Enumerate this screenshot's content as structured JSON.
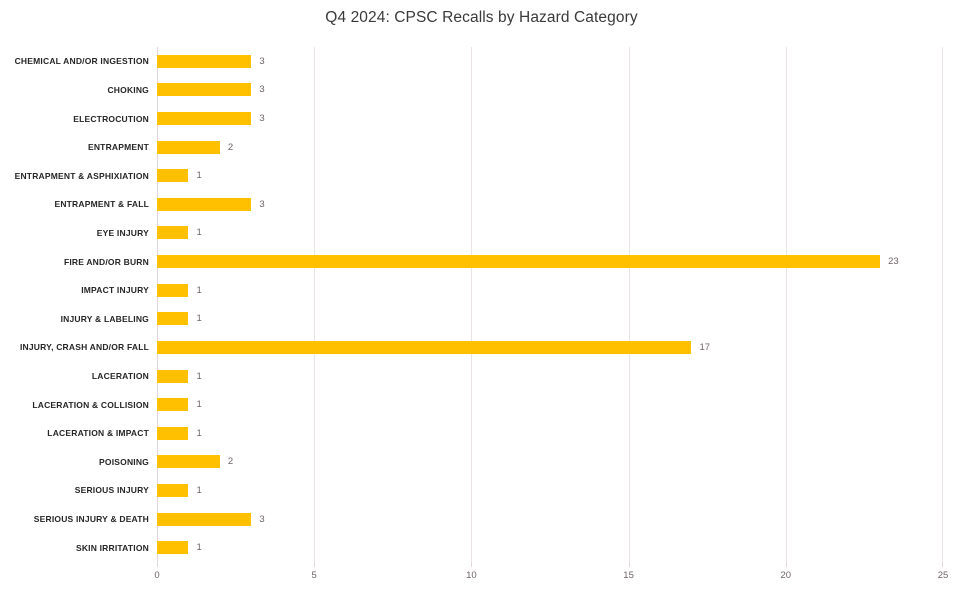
{
  "chart_data": {
    "type": "bar",
    "orientation": "horizontal",
    "title": "Q4 2024: CPSC Recalls by Hazard Category",
    "categories": [
      "CHEMICAL AND/OR INGESTION",
      "CHOKING",
      "ELECTROCUTION",
      "ENTRAPMENT",
      "ENTRAPMENT & ASPHIXIATION",
      "ENTRAPMENT & FALL",
      "EYE INJURY",
      "FIRE AND/OR BURN",
      "IMPACT INJURY",
      "INJURY & LABELING",
      "INJURY, CRASH AND/OR FALL",
      "LACERATION",
      "LACERATION & COLLISION",
      "LACERATION & IMPACT",
      "POISONING",
      "SERIOUS INJURY",
      "SERIOUS INJURY & DEATH",
      "SKIN IRRITATION"
    ],
    "values": [
      3,
      3,
      3,
      2,
      1,
      3,
      1,
      23,
      1,
      1,
      17,
      1,
      1,
      1,
      2,
      1,
      3,
      1
    ],
    "xticks": [
      "0",
      "5",
      "10",
      "15",
      "20",
      "25"
    ],
    "xlim": [
      0,
      25
    ],
    "xlabel": "",
    "ylabel": "",
    "grid": "vertical",
    "legend": "none",
    "colors": {
      "bar": "#FFC000",
      "value_label": "#6e6366",
      "category_label": "#262626",
      "gridline": "#ece3e8",
      "axis_line": "#e0d6dc",
      "tick_label": "#6e6366",
      "title": "#3a3a3a"
    }
  }
}
